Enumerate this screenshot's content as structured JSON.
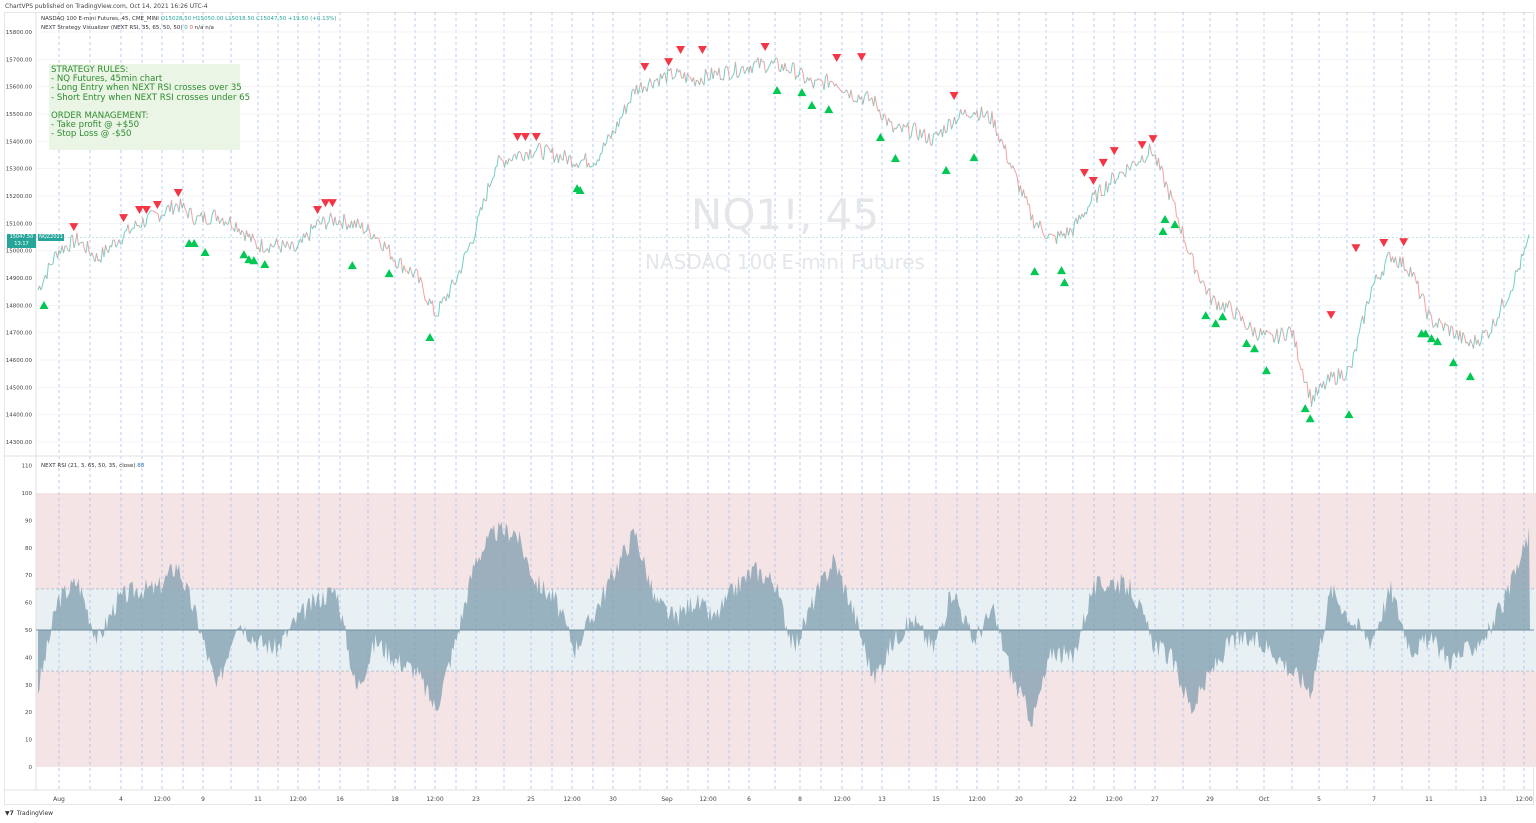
{
  "published": "ChartVPS published on TradingView.com, Oct 14, 2021 16:26 UTC-4",
  "legend": {
    "symbol": "NASDAQ 100 E-mini Futures, 45, CME_MINI",
    "o": "O15028.50",
    "h": "H15050.00",
    "l": "L15018.50",
    "c": "C15047.50",
    "chg": "+19.50 (+0.13%)",
    "indicator": "NEXT Strategy Visualizer (NEXT RSI, 35, 65, 50, 50)",
    "ind_v1": "0",
    "ind_v2": "0",
    "ind_na1": "n/a",
    "ind_na2": "n/a",
    "rsi_label": "NEXT RSI (21, 3, 65, 50, 35, close)",
    "rsi_value": "88"
  },
  "strategy_box": "STRATEGY RULES:\n- NQ Futures, 45min chart\n- Long Entry when NEXT RSI crosses over 35\n- Short Entry when NEXT RSI crosses under 65\n\nORDER MANAGEMENT:\n- Take profit @ +$50\n- Stop Loss @ -$50",
  "watermark": {
    "symbol": "NQ1!, 45",
    "name": "NASDAQ 100 E-mini Futures"
  },
  "last_price": {
    "price": "15047.50",
    "countdown": "13:17",
    "symbol": "NQZ2021"
  },
  "footer": {
    "logo": "TV",
    "brand": "TradingView"
  },
  "colors": {
    "up": "#26a69a",
    "down": "#ef5350",
    "long_signal": "#00c853",
    "short_signal": "#f23645",
    "rsi_fill": "#7f9dae",
    "overbought_band": "#f5e4e6",
    "neutral_band": "#e8f0f4",
    "strategy_text": "#2e8b2e"
  },
  "chart_data": [
    {
      "type": "line",
      "title": "NASDAQ 100 E-mini Futures, 45",
      "y_ticks": [
        "15800.00",
        "15700.00",
        "15600.00",
        "15500.00",
        "15400.00",
        "15300.00",
        "15200.00",
        "15100.00",
        "15000.00",
        "14900.00",
        "14800.00",
        "14700.00",
        "14600.00",
        "14500.00",
        "14400.00",
        "14300.00"
      ],
      "ylim": [
        14300,
        15800
      ],
      "x_ticks": [
        "Aug",
        "4",
        "12:00",
        "9",
        "11",
        "12:00",
        "16",
        "18",
        "12:00",
        "23",
        "25",
        "12:00",
        "30",
        "Sep",
        "12:00",
        "6",
        "8",
        "12:00",
        "13",
        "15",
        "12:00",
        "20",
        "22",
        "12:00",
        "27",
        "29",
        "Oct",
        "5",
        "7",
        "11",
        "13",
        "12:00"
      ],
      "close": [
        14857,
        15000,
        15040,
        14970,
        15040,
        15095,
        15130,
        15170,
        15115,
        15130,
        15095,
        15020,
        15020,
        15000,
        15095,
        15115,
        15095,
        15057,
        14965,
        14910,
        14765,
        14890,
        15075,
        15315,
        15350,
        15370,
        15350,
        15330,
        15330,
        15440,
        15590,
        15625,
        15645,
        15625,
        15645,
        15660,
        15680,
        15680,
        15660,
        15605,
        15625,
        15570,
        15550,
        15440,
        15440,
        15405,
        15480,
        15515,
        15480,
        15295,
        15115,
        15040,
        15075,
        15185,
        15260,
        15315,
        15370,
        15185,
        14965,
        14820,
        14785,
        14710,
        14675,
        14710,
        14455,
        14530,
        14565,
        14857,
        14985,
        14930,
        14745,
        14710,
        14655,
        14710,
        14857,
        15040
      ],
      "short_signals": [
        [
          1.8,
          15086
        ],
        [
          4.3,
          15119
        ],
        [
          5.1,
          15149
        ],
        [
          5.45,
          15149
        ],
        [
          6.0,
          15167
        ],
        [
          7.05,
          15211
        ],
        [
          14.05,
          15149
        ],
        [
          14.45,
          15174
        ],
        [
          14.8,
          15174
        ],
        [
          24.1,
          15416
        ],
        [
          24.5,
          15416
        ],
        [
          25.05,
          15416
        ],
        [
          30.5,
          15672
        ],
        [
          31.7,
          15690
        ],
        [
          32.3,
          15734
        ],
        [
          33.4,
          15734
        ],
        [
          36.55,
          15745
        ],
        [
          40.15,
          15705
        ],
        [
          41.4,
          15708
        ],
        [
          46.05,
          15566
        ],
        [
          52.6,
          15284
        ],
        [
          53.05,
          15255
        ],
        [
          53.55,
          15321
        ],
        [
          54.1,
          15364
        ],
        [
          55.5,
          15386
        ],
        [
          56.05,
          15408
        ],
        [
          65.0,
          14764
        ],
        [
          66.25,
          15009
        ],
        [
          67.65,
          15028
        ],
        [
          68.65,
          15031
        ]
      ],
      "long_signals": [
        [
          0.3,
          14801
        ],
        [
          7.6,
          15028
        ],
        [
          7.85,
          15028
        ],
        [
          8.4,
          14995
        ],
        [
          10.35,
          14987
        ],
        [
          10.6,
          14969
        ],
        [
          10.85,
          14965
        ],
        [
          11.4,
          14951
        ],
        [
          15.8,
          14947
        ],
        [
          17.65,
          14918
        ],
        [
          19.7,
          14684
        ],
        [
          27.1,
          15229
        ],
        [
          27.25,
          15222
        ],
        [
          37.15,
          15588
        ],
        [
          38.4,
          15580
        ],
        [
          38.9,
          15533
        ],
        [
          39.75,
          15518
        ],
        [
          42.35,
          15416
        ],
        [
          43.1,
          15339
        ],
        [
          45.65,
          15295
        ],
        [
          47.05,
          15342
        ],
        [
          50.1,
          14925
        ],
        [
          51.45,
          14929
        ],
        [
          51.6,
          14885
        ],
        [
          56.55,
          15072
        ],
        [
          56.65,
          15116
        ],
        [
          57.15,
          15097
        ],
        [
          58.7,
          14764
        ],
        [
          59.2,
          14735
        ],
        [
          59.55,
          14760
        ],
        [
          60.75,
          14662
        ],
        [
          61.15,
          14643
        ],
        [
          61.75,
          14563
        ],
        [
          63.7,
          14424
        ],
        [
          63.95,
          14387
        ],
        [
          65.9,
          14402
        ],
        [
          69.55,
          14698
        ],
        [
          69.75,
          14698
        ],
        [
          70.05,
          14680
        ],
        [
          70.35,
          14669
        ],
        [
          71.15,
          14592
        ],
        [
          72.0,
          14541
        ]
      ]
    },
    {
      "type": "area",
      "title": "NEXT RSI (21, 3, 65, 50, 35, close)",
      "y_ticks": [
        "110",
        "100",
        "90",
        "80",
        "70",
        "60",
        "50",
        "40",
        "30",
        "20",
        "10",
        "0"
      ],
      "ylim": [
        0,
        110
      ],
      "levels": {
        "upper": 65,
        "middle": 50,
        "lower": 35
      },
      "values": [
        28,
        61,
        68,
        46,
        61,
        65,
        65,
        74,
        54,
        28,
        54,
        46,
        43,
        54,
        61,
        65,
        28,
        46,
        39,
        35,
        21,
        46,
        76,
        86,
        86,
        68,
        61,
        43,
        57,
        72,
        86,
        61,
        54,
        61,
        54,
        65,
        72,
        68,
        43,
        61,
        76,
        57,
        32,
        46,
        54,
        43,
        65,
        46,
        57,
        32,
        17,
        43,
        39,
        65,
        68,
        65,
        46,
        39,
        21,
        35,
        46,
        46,
        43,
        35,
        28,
        65,
        54,
        46,
        65,
        43,
        46,
        39,
        43,
        50,
        65,
        86
      ]
    }
  ]
}
